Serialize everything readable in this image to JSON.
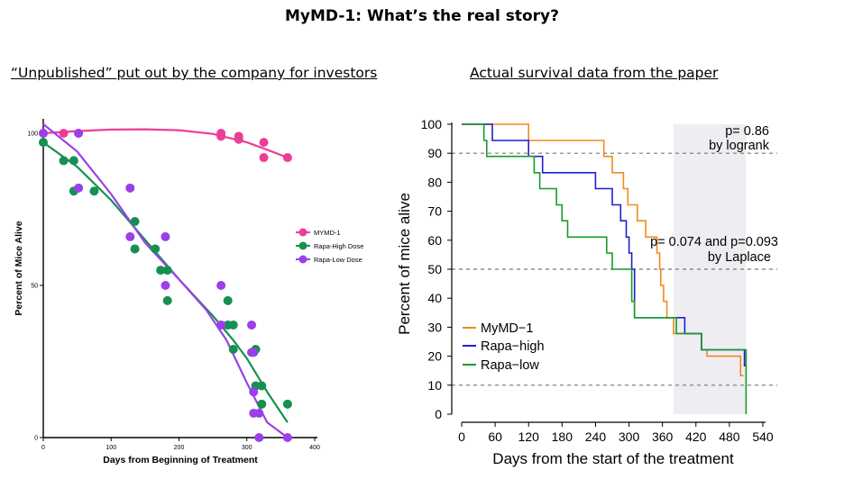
{
  "slide": {
    "title": "MyMD-1: What’s the real story?",
    "left_heading": "“Unpublished” put out by the company for investors",
    "right_heading": "Actual survival data from the paper"
  },
  "colors": {
    "mymd1_left": "#ee3d97",
    "rapa_high_left": "#169050",
    "rapa_low_left": "#9b40e8",
    "mymd1_right": "#f08a1c",
    "rapa_high_right": "#1f1fd0",
    "rapa_low_right": "#169c2a",
    "shade": "#eeeef2"
  },
  "chart_data": [
    {
      "type": "scatter",
      "title": "",
      "xlabel": "Days from Beginning of Treatment",
      "ylabel": "Percent of Mice Alive",
      "xlim": [
        0,
        400
      ],
      "ylim": [
        0,
        100
      ],
      "xticks": [
        "0",
        "100",
        "200",
        "300",
        "400"
      ],
      "yticks": [
        "0",
        "50",
        "100"
      ],
      "legend_position": "right",
      "series": [
        {
          "name": "MYMD-1",
          "points": [
            [
              0,
              100
            ],
            [
              30,
              100
            ],
            [
              52,
              100
            ],
            [
              262,
              100
            ],
            [
              262,
              99
            ],
            [
              288,
              99
            ],
            [
              288,
              98
            ],
            [
              325,
              97
            ],
            [
              325,
              92
            ],
            [
              360,
              92
            ]
          ],
          "trend": [
            [
              0,
              100
            ],
            [
              50,
              100.7
            ],
            [
              100,
              101.2
            ],
            [
              150,
              101.3
            ],
            [
              200,
              101
            ],
            [
              250,
              99.8
            ],
            [
              300,
              97
            ],
            [
              330,
              94.6
            ],
            [
              360,
              92
            ]
          ]
        },
        {
          "name": "Rapa-High Dose",
          "points": [
            [
              0,
              97
            ],
            [
              30,
              91
            ],
            [
              45,
              91
            ],
            [
              45,
              81
            ],
            [
              75,
              81
            ],
            [
              135,
              71
            ],
            [
              135,
              62
            ],
            [
              165,
              62
            ],
            [
              173,
              55
            ],
            [
              183,
              55
            ],
            [
              183,
              45
            ],
            [
              272,
              45
            ],
            [
              272,
              37
            ],
            [
              280,
              37
            ],
            [
              280,
              29
            ],
            [
              313,
              29
            ],
            [
              313,
              17
            ],
            [
              322,
              17
            ],
            [
              322,
              11
            ],
            [
              360,
              11
            ]
          ],
          "trend": [
            [
              0,
              97
            ],
            [
              50,
              89
            ],
            [
              100,
              78
            ],
            [
              150,
              65
            ],
            [
              200,
              52
            ],
            [
              250,
              40
            ],
            [
              280,
              32
            ],
            [
              300,
              26
            ],
            [
              330,
              15
            ],
            [
              360,
              5
            ]
          ]
        },
        {
          "name": "Rapa-Low Dose",
          "points": [
            [
              0,
              100
            ],
            [
              52,
              100
            ],
            [
              52,
              82
            ],
            [
              128,
              82
            ],
            [
              128,
              66
            ],
            [
              180,
              66
            ],
            [
              180,
              50
            ],
            [
              262,
              50
            ],
            [
              262,
              37
            ],
            [
              307,
              37
            ],
            [
              307,
              28
            ],
            [
              310,
              28
            ],
            [
              310,
              15
            ],
            [
              310,
              8
            ],
            [
              318,
              8
            ],
            [
              318,
              0
            ],
            [
              360,
              0
            ]
          ],
          "trend": [
            [
              0,
              103
            ],
            [
              50,
              94
            ],
            [
              100,
              80
            ],
            [
              150,
              64
            ],
            [
              200,
              52
            ],
            [
              240,
              42
            ],
            [
              270,
              32
            ],
            [
              300,
              18
            ],
            [
              330,
              5
            ],
            [
              360,
              0
            ]
          ]
        }
      ]
    },
    {
      "type": "line",
      "title": "",
      "xlabel": "Days from the start of the treatment",
      "ylabel": "Percent of mice alive",
      "xlim": [
        0,
        540
      ],
      "ylim": [
        0,
        100
      ],
      "xticks": [
        "0",
        "60",
        "120",
        "180",
        "240",
        "300",
        "360",
        "420",
        "480",
        "540"
      ],
      "yticks": [
        "0",
        "10",
        "20",
        "30",
        "40",
        "50",
        "60",
        "70",
        "80",
        "90",
        "100"
      ],
      "reference_lines_y": [
        10,
        50,
        90
      ],
      "shaded_x_range": [
        380,
        510
      ],
      "annotations": [
        "p= 0.86",
        "by logrank",
        "p= 0.074 and p=0.093",
        "by Laplace"
      ],
      "legend_position": "bottom-left",
      "series": [
        {
          "name": "MyMD−1",
          "steps": [
            [
              0,
              100
            ],
            [
              120,
              94.4
            ],
            [
              255,
              88.9
            ],
            [
              270,
              83.3
            ],
            [
              290,
              77.8
            ],
            [
              298,
              72.2
            ],
            [
              315,
              66.7
            ],
            [
              330,
              61.1
            ],
            [
              350,
              55.6
            ],
            [
              355,
              50
            ],
            [
              357,
              44.4
            ],
            [
              362,
              38.9
            ],
            [
              368,
              33.3
            ],
            [
              380,
              27.8
            ],
            [
              410,
              27.8
            ],
            [
              430,
              22.2
            ],
            [
              440,
              20
            ],
            [
              495,
              20
            ],
            [
              500,
              13.3
            ],
            [
              505,
              13.3
            ]
          ]
        },
        {
          "name": "Rapa−high",
          "steps": [
            [
              0,
              100
            ],
            [
              55,
              94.4
            ],
            [
              120,
              88.9
            ],
            [
              145,
              83.3
            ],
            [
              240,
              77.8
            ],
            [
              270,
              72.2
            ],
            [
              285,
              66.7
            ],
            [
              295,
              61.1
            ],
            [
              300,
              55.6
            ],
            [
              305,
              50
            ],
            [
              310,
              33.3
            ],
            [
              390,
              33.3
            ],
            [
              400,
              27.8
            ],
            [
              430,
              22.2
            ],
            [
              505,
              22.2
            ],
            [
              507,
              16.7
            ],
            [
              510,
              16.7
            ]
          ]
        },
        {
          "name": "Rapa−low",
          "steps": [
            [
              0,
              100
            ],
            [
              40,
              94.4
            ],
            [
              45,
              88.9
            ],
            [
              130,
              83.3
            ],
            [
              140,
              77.8
            ],
            [
              170,
              72.2
            ],
            [
              180,
              66.7
            ],
            [
              190,
              61.1
            ],
            [
              260,
              55.6
            ],
            [
              270,
              50
            ],
            [
              290,
              50
            ],
            [
              305,
              38.9
            ],
            [
              310,
              33.3
            ],
            [
              380,
              33.3
            ],
            [
              385,
              27.8
            ],
            [
              420,
              27.8
            ],
            [
              430,
              22.2
            ],
            [
              505,
              22.2
            ],
            [
              510,
              0
            ]
          ]
        }
      ]
    }
  ]
}
